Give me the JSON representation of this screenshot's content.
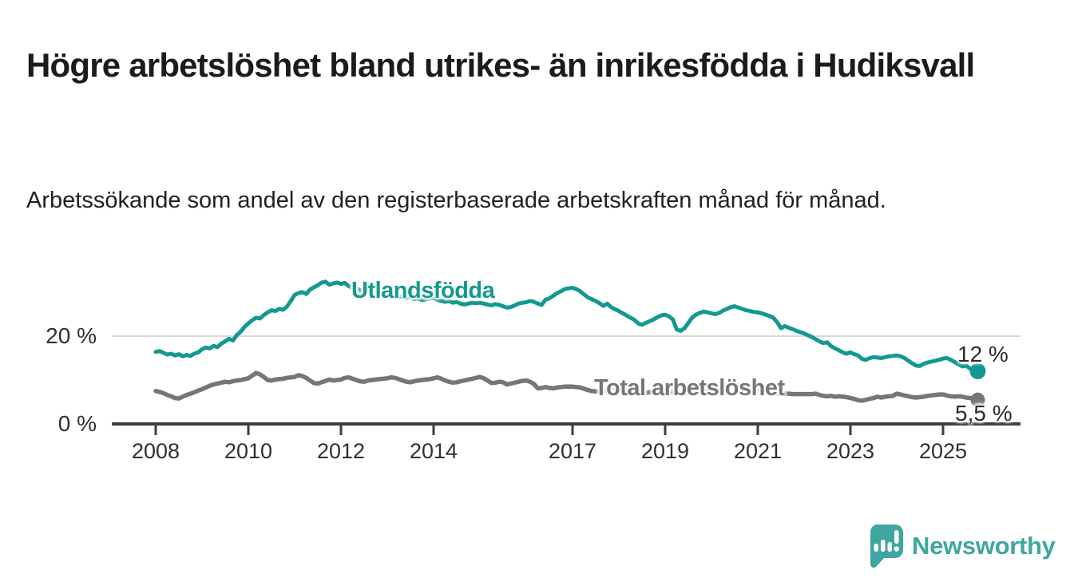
{
  "title": "Högre arbetslöshet bland utrikes- än inrikesfödda i Hudiksvall",
  "subtitle": "Arbetssökande som andel av den registerbaserade arbetskraften månad för månad.",
  "logo": {
    "text": "Newsworthy"
  },
  "colors": {
    "series_utlandsfodda": "#13998f",
    "series_total": "#767676",
    "axis": "#3d3d3d",
    "gridline": "#d9d9d9",
    "logo_teal": "#3fa6a1",
    "title_text": "#1b1b1b",
    "tick_text": "#303030"
  },
  "chart_data": {
    "type": "line",
    "title": "Högre arbetslöshet bland utrikes- än inrikesfödda i Hudiksvall",
    "subtitle": "Arbetssökande som andel av den registerbaserade arbetskraften månad för månad.",
    "xlabel": "",
    "ylabel": "",
    "unit": "%",
    "ylim": [
      0,
      35
    ],
    "grid": "single horizontal gridline at 20 %",
    "legend_position": "inline labels on lines",
    "y_tick_labels": [
      "20 %",
      "0 %"
    ],
    "y_tick_values": [
      20,
      0
    ],
    "x_ticks": [
      {
        "label": "2008",
        "year": 2008
      },
      {
        "label": "2010",
        "year": 2010
      },
      {
        "label": "2012",
        "year": 2012
      },
      {
        "label": "2014",
        "year": 2014
      },
      {
        "label": "2017",
        "year": 2017
      },
      {
        "label": "2019",
        "year": 2019
      },
      {
        "label": "2021",
        "year": 2021
      },
      {
        "label": "2023",
        "year": 2023
      },
      {
        "label": "2025",
        "year": 2025
      }
    ],
    "x_start": "2008-01",
    "x_end": "2025-10",
    "resolution": "monthly",
    "series": [
      {
        "id": "utlandsfodda",
        "name": "Utlandsfödda",
        "color": "#13998f",
        "width": 5,
        "dot_r": 10,
        "end_label": "12 %",
        "monthly_values": [
          16.4,
          16.6,
          16.2,
          15.8,
          16.0,
          15.6,
          15.9,
          15.4,
          15.7,
          15.5,
          16.0,
          16.3,
          17.0,
          17.4,
          17.2,
          17.8,
          17.5,
          18.3,
          18.8,
          19.4,
          19.0,
          20.2,
          21.0,
          22.1,
          22.9,
          23.6,
          24.2,
          24.0,
          24.8,
          25.4,
          25.9,
          25.7,
          26.2,
          26.0,
          26.7,
          28.0,
          29.4,
          29.8,
          30.0,
          29.6,
          30.6,
          31.1,
          31.6,
          32.2,
          32.4,
          31.7,
          32.0,
          32.2,
          31.9,
          32.1,
          31.4,
          31.0,
          30.9,
          30.4,
          30.6,
          30.1,
          29.8,
          30.0,
          29.6,
          29.8,
          29.9,
          29.5,
          29.2,
          28.9,
          29.1,
          28.7,
          28.9,
          28.4,
          28.6,
          28.2,
          28.4,
          28.6,
          28.7,
          28.3,
          28.0,
          27.8,
          28.0,
          27.6,
          27.8,
          27.4,
          27.2,
          27.4,
          27.6,
          27.5,
          27.6,
          27.4,
          27.2,
          27.0,
          27.3,
          27.1,
          26.8,
          26.5,
          26.6,
          27.0,
          27.4,
          27.6,
          27.7,
          28.0,
          27.8,
          27.4,
          27.1,
          28.3,
          28.6,
          29.2,
          29.8,
          30.2,
          30.7,
          30.9,
          31.0,
          30.7,
          30.2,
          29.5,
          28.8,
          28.4,
          28.0,
          27.5,
          26.9,
          27.4,
          26.6,
          26.1,
          25.7,
          25.2,
          24.7,
          24.2,
          23.7,
          22.9,
          22.6,
          23.0,
          23.4,
          23.8,
          24.3,
          24.7,
          24.9,
          24.5,
          23.8,
          21.5,
          21.2,
          21.8,
          23.0,
          24.2,
          24.9,
          25.3,
          25.6,
          25.4,
          25.2,
          25.0,
          25.3,
          25.8,
          26.2,
          26.6,
          26.8,
          26.5,
          26.2,
          25.9,
          25.7,
          25.5,
          25.4,
          25.2,
          24.9,
          24.6,
          24.2,
          23.2,
          21.8,
          22.3,
          21.9,
          21.6,
          21.2,
          20.9,
          20.6,
          20.2,
          19.8,
          19.3,
          18.8,
          18.4,
          18.6,
          17.7,
          17.2,
          16.8,
          16.3,
          16.0,
          16.3,
          15.9,
          15.6,
          14.8,
          14.6,
          15.0,
          15.2,
          15.1,
          15.0,
          15.2,
          15.4,
          15.5,
          15.6,
          15.4,
          15.0,
          14.4,
          13.8,
          13.3,
          13.2,
          13.7,
          14.0,
          14.2,
          14.4,
          14.6,
          14.9,
          15.0,
          14.6,
          14.1,
          13.6,
          13.1,
          13.3,
          12.6,
          12.2,
          12.0
        ]
      },
      {
        "id": "total-arbetsloshet",
        "name": "Total arbetslöshet",
        "color": "#767676",
        "width": 5.5,
        "dot_r": 9,
        "end_label": "5,5 %",
        "monthly_values": [
          7.5,
          7.3,
          7.0,
          6.6,
          6.3,
          5.9,
          5.8,
          6.2,
          6.6,
          6.9,
          7.2,
          7.6,
          7.9,
          8.3,
          8.7,
          9.0,
          9.2,
          9.4,
          9.6,
          9.5,
          9.7,
          9.9,
          10.0,
          10.2,
          10.4,
          11.0,
          11.6,
          11.3,
          10.7,
          10.0,
          9.9,
          10.1,
          10.2,
          10.3,
          10.5,
          10.6,
          10.7,
          11.1,
          10.9,
          10.5,
          9.9,
          9.3,
          9.2,
          9.5,
          9.8,
          10.1,
          9.9,
          10.0,
          10.1,
          10.5,
          10.6,
          10.3,
          10.0,
          9.7,
          9.6,
          9.9,
          10.0,
          10.1,
          10.2,
          10.3,
          10.4,
          10.6,
          10.5,
          10.2,
          9.9,
          9.6,
          9.5,
          9.7,
          9.9,
          10.0,
          10.1,
          10.2,
          10.4,
          10.6,
          10.3,
          9.9,
          9.6,
          9.4,
          9.5,
          9.7,
          9.9,
          10.1,
          10.3,
          10.5,
          10.7,
          10.4,
          9.9,
          9.3,
          9.4,
          9.6,
          9.5,
          9.0,
          9.2,
          9.4,
          9.6,
          9.8,
          9.9,
          9.6,
          9.1,
          8.1,
          8.2,
          8.4,
          8.2,
          8.1,
          8.3,
          8.4,
          8.5,
          8.5,
          8.5,
          8.4,
          8.3,
          8.0,
          7.7,
          7.5,
          7.4,
          7.5,
          7.6,
          7.7,
          7.8,
          7.9,
          7.9,
          7.8,
          7.6,
          7.4,
          7.2,
          7.1,
          7.0,
          7.1,
          7.2,
          7.3,
          7.4,
          7.5,
          7.5,
          7.4,
          7.3,
          7.2,
          7.1,
          7.0,
          7.1,
          7.2,
          7.3,
          7.4,
          7.5,
          7.6,
          7.8,
          8.0,
          8.4,
          8.8,
          8.9,
          8.9,
          8.8,
          8.7,
          8.5,
          8.3,
          8.1,
          8.0,
          7.9,
          7.8,
          7.6,
          7.4,
          7.2,
          7.0,
          6.9,
          6.9,
          6.9,
          6.8,
          6.8,
          6.8,
          6.8,
          6.8,
          6.8,
          6.9,
          6.6,
          6.4,
          6.3,
          6.4,
          6.2,
          6.3,
          6.2,
          6.1,
          5.9,
          5.7,
          5.4,
          5.3,
          5.5,
          5.7,
          5.9,
          6.2,
          6.0,
          6.2,
          6.3,
          6.4,
          6.9,
          6.7,
          6.5,
          6.3,
          6.1,
          6.0,
          6.1,
          6.2,
          6.4,
          6.5,
          6.6,
          6.7,
          6.7,
          6.5,
          6.3,
          6.2,
          6.3,
          6.2,
          6.0,
          5.9,
          5.7,
          5.5
        ]
      }
    ]
  }
}
